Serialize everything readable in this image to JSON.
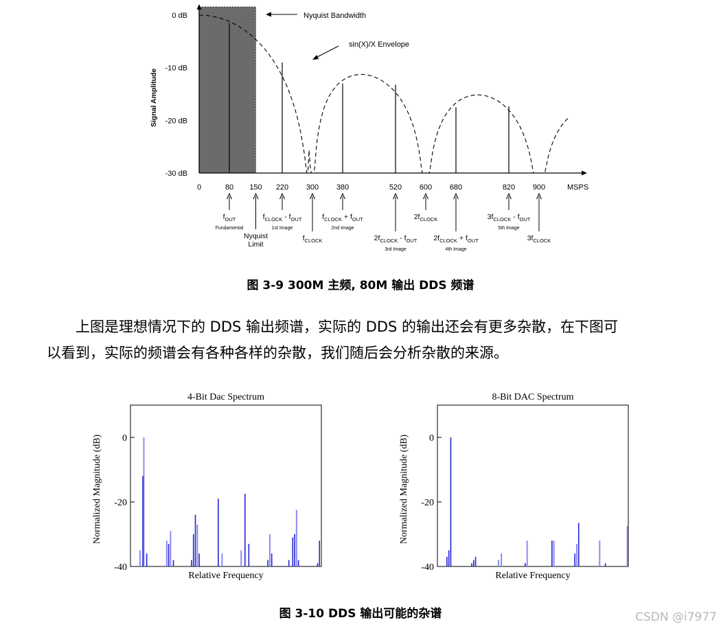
{
  "figure1": {
    "caption": "图 3-9  300M 主频, 80M 输出  DDS 频谱",
    "annotations": {
      "nyquist_bandwidth": "Nyquist Bandwidth",
      "envelope": "sin(X)/X Envelope"
    },
    "chart_data": {
      "type": "bar",
      "ylabel": "Signal Amplitude",
      "xunit": "MSPS",
      "ylim": [
        -30,
        0
      ],
      "xlim": [
        0,
        900
      ],
      "y_ticks": [
        "0 dB",
        "-10 dB",
        "-20 dB",
        "-30 dB"
      ],
      "y_tick_values": [
        0,
        -10,
        -20,
        -30
      ],
      "x_ticks": [
        "0",
        "80",
        "150",
        "220",
        "300",
        "380",
        "520",
        "600",
        "680",
        "820",
        "900"
      ],
      "x_tick_values": [
        0,
        80,
        150,
        220,
        300,
        380,
        520,
        600,
        680,
        820,
        900
      ],
      "lines": [
        {
          "x": 80,
          "y": -1.5
        },
        {
          "x": 220,
          "y": -9
        },
        {
          "x": 380,
          "y": -13
        },
        {
          "x": 520,
          "y": -13.2
        },
        {
          "x": 680,
          "y": -17.5
        },
        {
          "x": 820,
          "y": -17.3
        }
      ],
      "nyquist_band": [
        0,
        150
      ],
      "envelope": "sin(X)/X",
      "labels": [
        {
          "x": 80,
          "main": "f",
          "sub": "OUT",
          "note": "Fundamental"
        },
        {
          "x": 150,
          "main": "Nyquist\nLimit",
          "sub": "",
          "note": ""
        },
        {
          "x": 220,
          "main": "f",
          "sub": "CLOCK",
          "main2": " - f",
          "sub2": "OUT",
          "note": "1st Image"
        },
        {
          "x": 300,
          "main": "f",
          "sub": "CLOCK",
          "note": ""
        },
        {
          "x": 380,
          "main": "f",
          "sub": "CLOCK",
          "main2": " + f",
          "sub2": "OUT",
          "note": "2nd Image"
        },
        {
          "x": 520,
          "main": "2f",
          "sub": "CLOCK",
          "main2": " - f",
          "sub2": "OUT",
          "note": "3rd Image"
        },
        {
          "x": 600,
          "main": "2f",
          "sub": "CLOCK",
          "note": ""
        },
        {
          "x": 680,
          "main": "2f",
          "sub": "CLOCK",
          "main2": " + f",
          "sub2": "OUT",
          "note": "4th Image"
        },
        {
          "x": 820,
          "main": "3f",
          "sub": "CLOCK",
          "main2": " - f",
          "sub2": "OUT",
          "note": "5th Image"
        },
        {
          "x": 900,
          "main": "3f",
          "sub": "CLOCK",
          "note": ""
        }
      ]
    }
  },
  "paragraph": {
    "line1": "上图是理想情况下的 DDS 输出频谱，实际的 DDS 的输出还会有更多杂散，在下图可",
    "line2": "以看到，实际的频谱会有各种各样的杂散，我们随后会分析杂散的来源。"
  },
  "figure2": {
    "caption": "图 3-10  DDS 输出可能的杂谱",
    "chart_data": [
      {
        "type": "bar",
        "title": "4-Bit Dac Spectrum",
        "xlabel": "Relative Frequency",
        "ylabel": "Normalized Magnitude (dB)",
        "ylim": [
          -40,
          10
        ],
        "xlim": [
          0,
          1
        ],
        "y_ticks": [
          "0",
          "-20",
          "-40"
        ],
        "y_tick_values": [
          0,
          -20,
          -40
        ],
        "bars": [
          {
            "x": 0.05,
            "y": -35,
            "light": true
          },
          {
            "x": 0.07,
            "y": 0,
            "light": true
          },
          {
            "x": 0.065,
            "y": -12
          },
          {
            "x": 0.085,
            "y": -36
          },
          {
            "x": 0.19,
            "y": -32,
            "light": true
          },
          {
            "x": 0.2,
            "y": -33
          },
          {
            "x": 0.21,
            "y": -29,
            "light": true
          },
          {
            "x": 0.225,
            "y": -38
          },
          {
            "x": 0.32,
            "y": -38
          },
          {
            "x": 0.33,
            "y": -30
          },
          {
            "x": 0.34,
            "y": -24
          },
          {
            "x": 0.35,
            "y": -27,
            "light": true
          },
          {
            "x": 0.36,
            "y": -36
          },
          {
            "x": 0.46,
            "y": -19
          },
          {
            "x": 0.48,
            "y": -36,
            "light": true
          },
          {
            "x": 0.58,
            "y": -35,
            "light": true
          },
          {
            "x": 0.6,
            "y": -17.5
          },
          {
            "x": 0.62,
            "y": -33
          },
          {
            "x": 0.72,
            "y": -38
          },
          {
            "x": 0.73,
            "y": -30,
            "light": true
          },
          {
            "x": 0.74,
            "y": -36
          },
          {
            "x": 0.83,
            "y": -38
          },
          {
            "x": 0.85,
            "y": -31
          },
          {
            "x": 0.86,
            "y": -30
          },
          {
            "x": 0.87,
            "y": -22.5,
            "light": true
          },
          {
            "x": 0.88,
            "y": -38
          },
          {
            "x": 0.98,
            "y": -39
          },
          {
            "x": 0.99,
            "y": -32
          }
        ]
      },
      {
        "type": "bar",
        "title": "8-Bit DAC Spectrum",
        "xlabel": "Relative Frequency",
        "ylabel": "Normalized Magnitude (dB)",
        "ylim": [
          -40,
          10
        ],
        "xlim": [
          0,
          1
        ],
        "y_ticks": [
          "0",
          "-20",
          "-40"
        ],
        "y_tick_values": [
          0,
          -20,
          -40
        ],
        "bars": [
          {
            "x": 0.05,
            "y": -37
          },
          {
            "x": 0.06,
            "y": -35
          },
          {
            "x": 0.07,
            "y": 0
          },
          {
            "x": 0.18,
            "y": -39
          },
          {
            "x": 0.19,
            "y": -38
          },
          {
            "x": 0.2,
            "y": -37
          },
          {
            "x": 0.32,
            "y": -38,
            "light": true
          },
          {
            "x": 0.335,
            "y": -36,
            "light": true
          },
          {
            "x": 0.46,
            "y": -39
          },
          {
            "x": 0.47,
            "y": -32,
            "light": true
          },
          {
            "x": 0.6,
            "y": -32
          },
          {
            "x": 0.61,
            "y": -32,
            "light": true
          },
          {
            "x": 0.72,
            "y": -36
          },
          {
            "x": 0.73,
            "y": -33,
            "light": true
          },
          {
            "x": 0.74,
            "y": -26.5
          },
          {
            "x": 0.85,
            "y": -32,
            "light": true
          },
          {
            "x": 0.88,
            "y": -39
          },
          {
            "x": 0.995,
            "y": -27.5,
            "light": true
          }
        ]
      }
    ]
  },
  "watermark": "CSDN @i7977",
  "colors": {
    "bar_dark": "#2323d8",
    "bar_light": "#8a8af0",
    "band": "#6b6b6b"
  }
}
